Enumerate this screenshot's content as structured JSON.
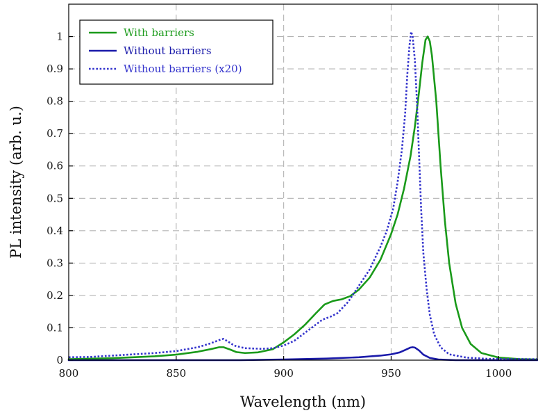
{
  "chart_data": {
    "type": "line",
    "title": "",
    "xlabel": "Wavelength (nm)",
    "ylabel": "PL intensity (arb. u.)",
    "xlim": [
      800,
      1018
    ],
    "ylim": [
      0,
      1.1
    ],
    "grid": true,
    "legend_position": "top-left",
    "x_ticks": [
      800,
      850,
      900,
      950,
      1000
    ],
    "x_tick_labels": [
      "800",
      "850",
      "900",
      "950",
      "1000"
    ],
    "y_ticks": [
      0,
      0.1,
      0.2,
      0.3,
      0.4,
      0.5,
      0.6,
      0.7,
      0.8,
      0.9,
      1
    ],
    "y_tick_labels": [
      "0",
      "0.1",
      "0.2",
      "0.3",
      "0.4",
      "0.5",
      "0.6",
      "0.7",
      "0.8",
      "0.9",
      "1"
    ],
    "series": [
      {
        "name": "With barriers",
        "color": "#1a9a1a",
        "style": "solid",
        "points": [
          [
            800,
            0.003
          ],
          [
            820,
            0.006
          ],
          [
            840,
            0.012
          ],
          [
            850,
            0.017
          ],
          [
            860,
            0.026
          ],
          [
            866,
            0.034
          ],
          [
            870,
            0.04
          ],
          [
            872,
            0.04
          ],
          [
            875,
            0.033
          ],
          [
            878,
            0.025
          ],
          [
            882,
            0.022
          ],
          [
            888,
            0.024
          ],
          [
            895,
            0.034
          ],
          [
            900,
            0.055
          ],
          [
            905,
            0.08
          ],
          [
            910,
            0.11
          ],
          [
            915,
            0.145
          ],
          [
            919,
            0.172
          ],
          [
            923,
            0.183
          ],
          [
            927,
            0.188
          ],
          [
            931,
            0.198
          ],
          [
            935,
            0.218
          ],
          [
            940,
            0.255
          ],
          [
            945,
            0.31
          ],
          [
            950,
            0.39
          ],
          [
            953,
            0.45
          ],
          [
            956,
            0.53
          ],
          [
            959,
            0.63
          ],
          [
            961,
            0.72
          ],
          [
            963,
            0.83
          ],
          [
            964.5,
            0.92
          ],
          [
            966,
            0.99
          ],
          [
            967,
            1.0
          ],
          [
            968,
            0.985
          ],
          [
            969,
            0.94
          ],
          [
            971,
            0.8
          ],
          [
            973,
            0.6
          ],
          [
            975,
            0.43
          ],
          [
            977,
            0.3
          ],
          [
            980,
            0.175
          ],
          [
            983,
            0.1
          ],
          [
            987,
            0.05
          ],
          [
            992,
            0.022
          ],
          [
            1000,
            0.008
          ],
          [
            1010,
            0.003
          ],
          [
            1018,
            0.002
          ]
        ]
      },
      {
        "name": "Without barriers",
        "color": "#1a1aaa",
        "style": "solid",
        "points": [
          [
            800,
            0
          ],
          [
            850,
            0
          ],
          [
            880,
            0
          ],
          [
            900,
            0.002
          ],
          [
            920,
            0.005
          ],
          [
            935,
            0.009
          ],
          [
            945,
            0.014
          ],
          [
            950,
            0.018
          ],
          [
            954,
            0.024
          ],
          [
            957,
            0.033
          ],
          [
            959,
            0.039
          ],
          [
            960,
            0.04
          ],
          [
            961,
            0.039
          ],
          [
            963,
            0.03
          ],
          [
            965,
            0.017
          ],
          [
            968,
            0.007
          ],
          [
            972,
            0.002
          ],
          [
            980,
            0
          ],
          [
            1018,
            0
          ]
        ]
      },
      {
        "name": "Without barriers (x20)",
        "color": "#3333cc",
        "style": "dotted",
        "points": [
          [
            800,
            0.009
          ],
          [
            810,
            0.01
          ],
          [
            820,
            0.014
          ],
          [
            830,
            0.018
          ],
          [
            840,
            0.022
          ],
          [
            850,
            0.028
          ],
          [
            860,
            0.04
          ],
          [
            866,
            0.052
          ],
          [
            870,
            0.062
          ],
          [
            872,
            0.066
          ],
          [
            874,
            0.058
          ],
          [
            877,
            0.045
          ],
          [
            882,
            0.037
          ],
          [
            890,
            0.035
          ],
          [
            895,
            0.037
          ],
          [
            900,
            0.045
          ],
          [
            905,
            0.06
          ],
          [
            910,
            0.085
          ],
          [
            915,
            0.11
          ],
          [
            918,
            0.125
          ],
          [
            922,
            0.135
          ],
          [
            925,
            0.145
          ],
          [
            930,
            0.18
          ],
          [
            935,
            0.23
          ],
          [
            940,
            0.28
          ],
          [
            945,
            0.35
          ],
          [
            948,
            0.4
          ],
          [
            951,
            0.47
          ],
          [
            953,
            0.55
          ],
          [
            955,
            0.65
          ],
          [
            956.5,
            0.76
          ],
          [
            957.5,
            0.88
          ],
          [
            958.5,
            0.97
          ],
          [
            959.3,
            1.015
          ],
          [
            960,
            1.0
          ],
          [
            961,
            0.93
          ],
          [
            962,
            0.8
          ],
          [
            963,
            0.63
          ],
          [
            964,
            0.46
          ],
          [
            965,
            0.33
          ],
          [
            966.5,
            0.22
          ],
          [
            968,
            0.14
          ],
          [
            970,
            0.08
          ],
          [
            973,
            0.04
          ],
          [
            977,
            0.018
          ],
          [
            985,
            0.008
          ],
          [
            995,
            0.004
          ],
          [
            1018,
            0.003
          ]
        ]
      }
    ]
  }
}
